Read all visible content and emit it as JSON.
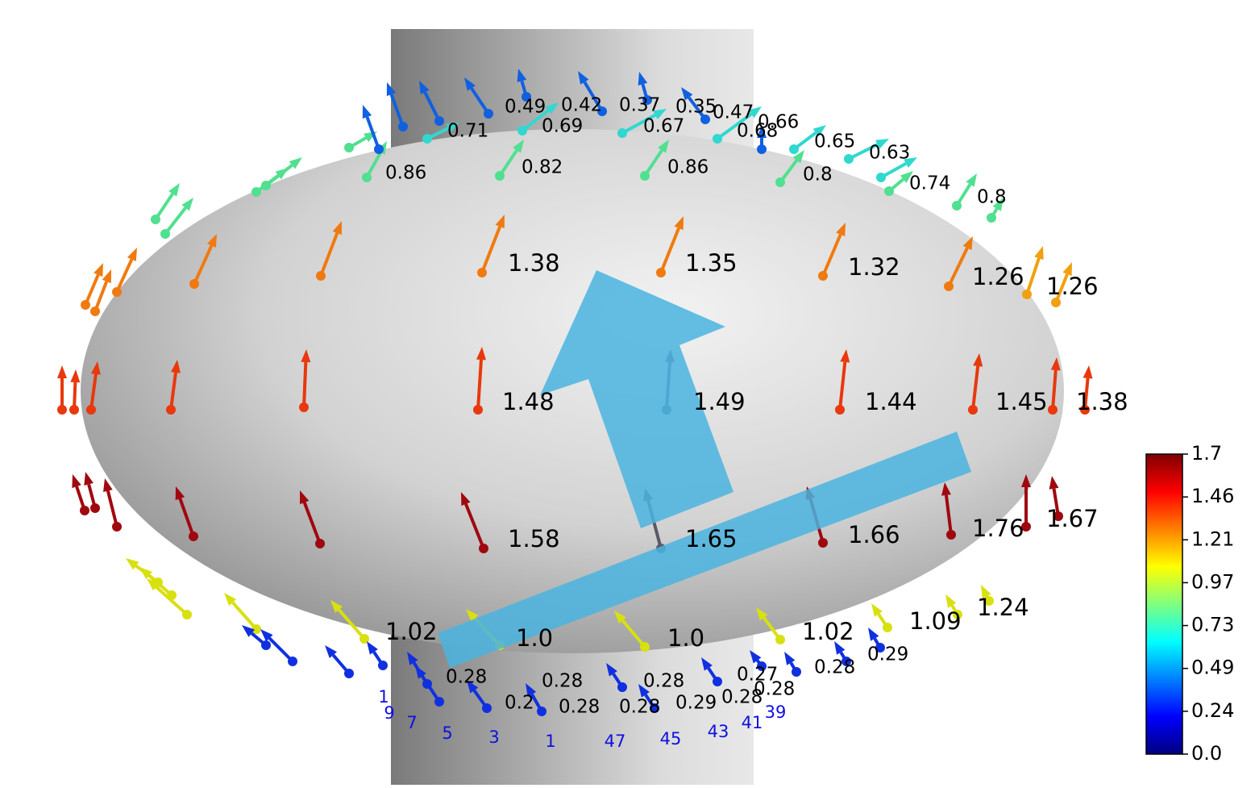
{
  "labels": {
    "top": [
      "0.49",
      "0.42",
      "0.37",
      "0.35",
      "0.47",
      "0.66",
      "0.71",
      "0.69",
      "0.67",
      "0.68",
      "0.65",
      "0.63",
      "0.86",
      "0.82",
      "0.86",
      "0.8",
      "0.74",
      "0.8"
    ],
    "upper": [
      "1.38",
      "1.35",
      "1.32",
      "1.26",
      "1.26"
    ],
    "middle": [
      "1.48",
      "1.49",
      "1.44",
      "1.45",
      "1.38"
    ],
    "lower": [
      "1.58",
      "1.65",
      "1.66",
      "1.76",
      "1.67"
    ],
    "bottom": [
      "1.02",
      "1.0",
      "1.0",
      "1.02",
      "1.09",
      "1.24"
    ],
    "base": [
      "0.28",
      "0.28",
      "0.28",
      "0.27",
      "0.28",
      "0.29",
      "0.2",
      "0.28",
      "0.28",
      "0.29",
      "0.28",
      "0.28"
    ],
    "indices": [
      "1",
      "9",
      "7",
      "5",
      "3",
      "1",
      "47",
      "45",
      "43",
      "41",
      "39"
    ]
  },
  "colorbar": {
    "ticks": [
      "1.7",
      "1.46",
      "1.21",
      "0.97",
      "0.73",
      "0.49",
      "0.24",
      "0.0"
    ]
  }
}
